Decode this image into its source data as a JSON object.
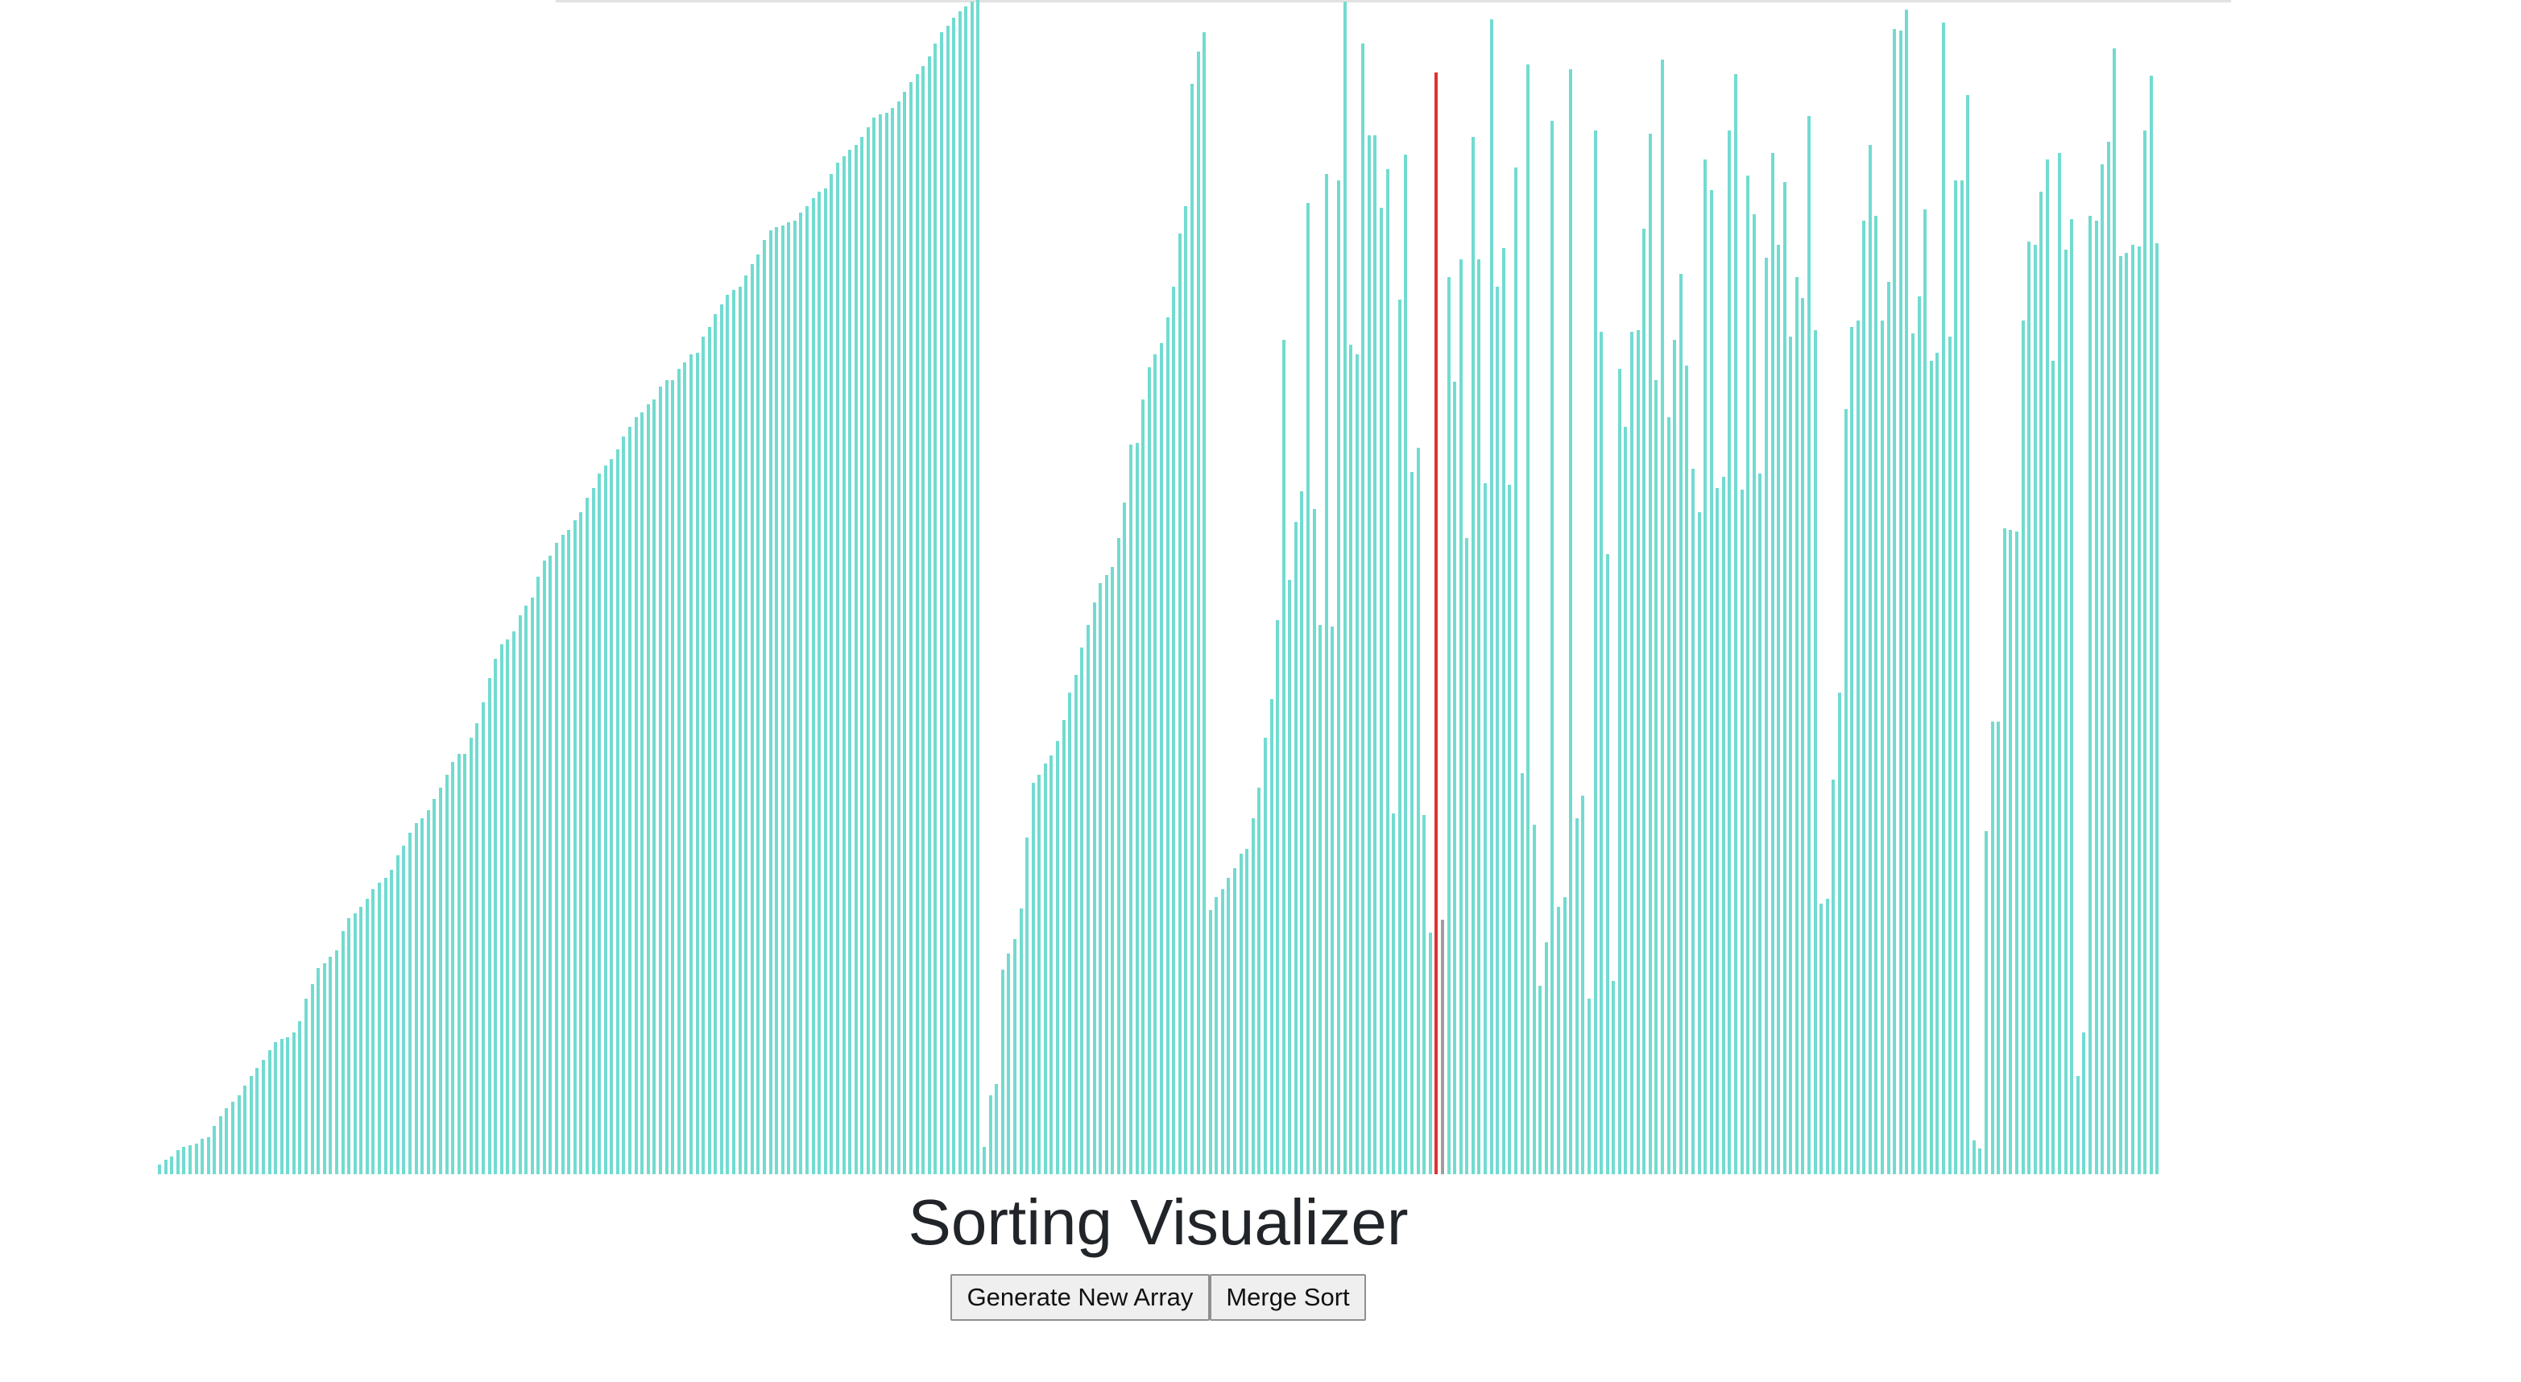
{
  "page": {
    "title": "Sorting Visualizer"
  },
  "controls": {
    "generate_label": "Generate New Array",
    "merge_sort_label": "Merge Sort"
  },
  "colors": {
    "bar_default": "#72dbd0",
    "bar_compare": "#e0312f",
    "bar_done_marker": "#9e9e9e"
  },
  "chart_data": {
    "type": "bar",
    "value_max": 1458,
    "highlight_index": 209,
    "marker_index": 210,
    "values": [
      12,
      18,
      22,
      30,
      34,
      36,
      38,
      44,
      46,
      60,
      72,
      82,
      90,
      98,
      110,
      122,
      132,
      142,
      154,
      164,
      168,
      170,
      176,
      190,
      218,
      236,
      256,
      262,
      270,
      278,
      302,
      318,
      324,
      332,
      342,
      354,
      362,
      368,
      378,
      396,
      408,
      424,
      436,
      442,
      452,
      466,
      480,
      496,
      512,
      522,
      522,
      542,
      560,
      586,
      616,
      640,
      658,
      664,
      674,
      694,
      706,
      716,
      742,
      762,
      768,
      784,
      794,
      800,
      812,
      822,
      840,
      852,
      870,
      880,
      888,
      900,
      916,
      928,
      940,
      946,
      956,
      962,
      978,
      986,
      986,
      1000,
      1008,
      1018,
      1020,
      1040,
      1052,
      1068,
      1080,
      1092,
      1098,
      1102,
      1116,
      1130,
      1142,
      1160,
      1172,
      1176,
      1178,
      1182,
      1184,
      1194,
      1202,
      1212,
      1220,
      1224,
      1242,
      1256,
      1264,
      1272,
      1278,
      1288,
      1300,
      1312,
      1316,
      1318,
      1324,
      1332,
      1344,
      1356,
      1366,
      1376,
      1388,
      1404,
      1418,
      1426,
      1436,
      1444,
      1450,
      1456,
      1458,
      34,
      98,
      112,
      254,
      274,
      292,
      330,
      418,
      486,
      496,
      510,
      520,
      538,
      564,
      598,
      620,
      654,
      682,
      710,
      734,
      744,
      754,
      790,
      834,
      906,
      908,
      962,
      1002,
      1018,
      1032,
      1064,
      1102,
      1168,
      1202,
      1354,
      1394,
      1418,
      328,
      344,
      354,
      368,
      380,
      398,
      404,
      442,
      480,
      542,
      590,
      688,
      1036,
      738,
      810,
      848,
      1206,
      826,
      682,
      1242,
      680,
      1234,
      1456,
      1030,
      1018,
      1404,
      1290,
      1290,
      1200,
      1248,
      448,
      1086,
      1266,
      872,
      902,
      446,
      300,
      1368,
      316,
      1114,
      984,
      1136,
      790,
      1288,
      1136,
      858,
      1434,
      1102,
      1150,
      856,
      1250,
      498,
      1378,
      434,
      234,
      288,
      1308,
      332,
      344,
      1372,
      442,
      470,
      218,
      1296,
      1046,
      770,
      240,
      1000,
      928,
      1046,
      1048,
      1174,
      1292,
      986,
      1384,
      940,
      1036,
      1118,
      1004,
      876,
      822,
      1260,
      1222,
      852,
      866,
      1296,
      1366,
      850,
      1240,
      1192,
      870,
      1138,
      1268,
      1154,
      1232,
      1040,
      1114,
      1088,
      1314,
      1048,
      336,
      342,
      490,
      598,
      950,
      1052,
      1060,
      1184,
      1278,
      1190,
      1060,
      1108,
      1422,
      1420,
      1446,
      1044,
      1090,
      1198,
      1010,
      1020,
      1430,
      1040,
      1234,
      1234,
      1340,
      42,
      32,
      426,
      562,
      562,
      802,
      800,
      798,
      1060,
      1158,
      1154,
      1220,
      1260,
      1010,
      1268,
      1148,
      1186,
      122,
      176,
      1190,
      1184,
      1254,
      1282,
      1398,
      1140,
      1144,
      1154,
      1152,
      1296,
      1364,
      1156
    ]
  }
}
